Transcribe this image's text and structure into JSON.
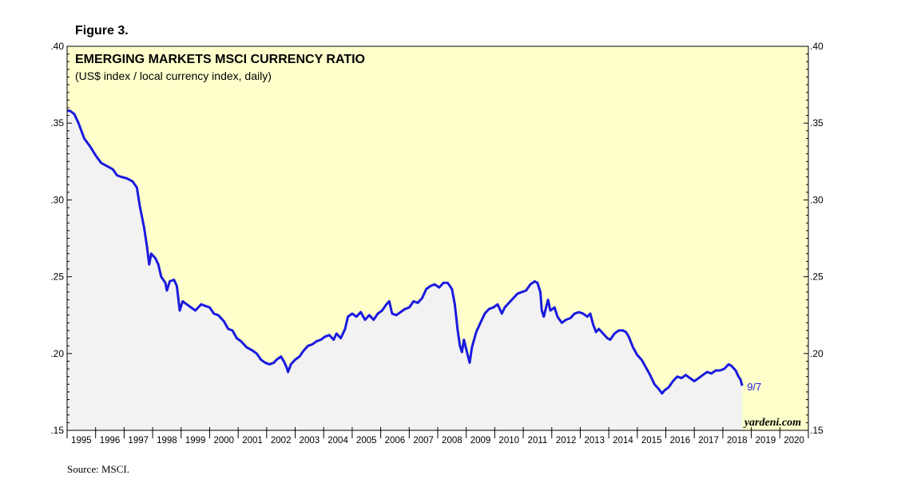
{
  "figure_label": "Figure 3.",
  "source_note": "Source: MSCI.",
  "watermark": "yardeni.com",
  "colors": {
    "plot_bg": "#ffffcc",
    "area_fill": "#f2f2f2",
    "line": "#1a1adf",
    "frame": "#000000"
  },
  "chart_data": {
    "type": "line",
    "title": "EMERGING MARKETS MSCI CURRENCY RATIO",
    "subtitle": "(US$ index / local currency index, daily)",
    "end_label": "9/7",
    "xlim": [
      1995,
      2021
    ],
    "ylim": [
      0.15,
      0.4
    ],
    "yticks": [
      ".15",
      ".20",
      ".25",
      ".30",
      ".35",
      ".40"
    ],
    "ytick_values": [
      0.15,
      0.2,
      0.25,
      0.3,
      0.35,
      0.4
    ],
    "xtick_labels": [
      "1995",
      "1996",
      "1997",
      "1998",
      "1999",
      "2000",
      "2001",
      "2002",
      "2003",
      "2004",
      "2005",
      "2006",
      "2007",
      "2008",
      "2009",
      "2010",
      "2011",
      "2012",
      "2013",
      "2014",
      "2015",
      "2016",
      "2017",
      "2018",
      "2019",
      "2020"
    ],
    "grid": false,
    "legend": "none",
    "series": [
      {
        "points": [
          [
            1995.0,
            0.358
          ],
          [
            1995.1,
            0.358
          ],
          [
            1995.25,
            0.356
          ],
          [
            1995.4,
            0.35
          ],
          [
            1995.6,
            0.34
          ],
          [
            1995.8,
            0.335
          ],
          [
            1996.0,
            0.329
          ],
          [
            1996.2,
            0.324
          ],
          [
            1996.4,
            0.322
          ],
          [
            1996.6,
            0.32
          ],
          [
            1996.75,
            0.316
          ],
          [
            1996.9,
            0.315
          ],
          [
            1997.1,
            0.314
          ],
          [
            1997.3,
            0.312
          ],
          [
            1997.45,
            0.308
          ],
          [
            1997.55,
            0.296
          ],
          [
            1997.7,
            0.282
          ],
          [
            1997.8,
            0.27
          ],
          [
            1997.88,
            0.258
          ],
          [
            1997.95,
            0.265
          ],
          [
            1998.1,
            0.262
          ],
          [
            1998.2,
            0.258
          ],
          [
            1998.3,
            0.25
          ],
          [
            1998.45,
            0.246
          ],
          [
            1998.5,
            0.241
          ],
          [
            1998.6,
            0.247
          ],
          [
            1998.75,
            0.248
          ],
          [
            1998.85,
            0.244
          ],
          [
            1998.95,
            0.228
          ],
          [
            1999.05,
            0.234
          ],
          [
            1999.2,
            0.232
          ],
          [
            1999.35,
            0.23
          ],
          [
            1999.5,
            0.228
          ],
          [
            1999.7,
            0.232
          ],
          [
            1999.85,
            0.231
          ],
          [
            2000.0,
            0.23
          ],
          [
            2000.15,
            0.226
          ],
          [
            2000.3,
            0.225
          ],
          [
            2000.5,
            0.221
          ],
          [
            2000.65,
            0.216
          ],
          [
            2000.8,
            0.215
          ],
          [
            2000.95,
            0.21
          ],
          [
            2001.1,
            0.208
          ],
          [
            2001.3,
            0.204
          ],
          [
            2001.5,
            0.202
          ],
          [
            2001.65,
            0.2
          ],
          [
            2001.8,
            0.196
          ],
          [
            2001.95,
            0.194
          ],
          [
            2002.1,
            0.193
          ],
          [
            2002.25,
            0.194
          ],
          [
            2002.35,
            0.196
          ],
          [
            2002.5,
            0.198
          ],
          [
            2002.6,
            0.195
          ],
          [
            2002.7,
            0.191
          ],
          [
            2002.75,
            0.188
          ],
          [
            2002.85,
            0.193
          ],
          [
            2003.0,
            0.196
          ],
          [
            2003.15,
            0.198
          ],
          [
            2003.3,
            0.202
          ],
          [
            2003.45,
            0.205
          ],
          [
            2003.6,
            0.206
          ],
          [
            2003.75,
            0.208
          ],
          [
            2003.9,
            0.209
          ],
          [
            2004.05,
            0.211
          ],
          [
            2004.2,
            0.212
          ],
          [
            2004.35,
            0.209
          ],
          [
            2004.45,
            0.213
          ],
          [
            2004.6,
            0.21
          ],
          [
            2004.75,
            0.216
          ],
          [
            2004.85,
            0.224
          ],
          [
            2005.0,
            0.226
          ],
          [
            2005.15,
            0.224
          ],
          [
            2005.3,
            0.227
          ],
          [
            2005.45,
            0.222
          ],
          [
            2005.6,
            0.225
          ],
          [
            2005.75,
            0.222
          ],
          [
            2005.9,
            0.226
          ],
          [
            2006.05,
            0.228
          ],
          [
            2006.2,
            0.232
          ],
          [
            2006.3,
            0.234
          ],
          [
            2006.4,
            0.226
          ],
          [
            2006.55,
            0.225
          ],
          [
            2006.7,
            0.227
          ],
          [
            2006.85,
            0.229
          ],
          [
            2007.0,
            0.23
          ],
          [
            2007.15,
            0.234
          ],
          [
            2007.3,
            0.233
          ],
          [
            2007.45,
            0.236
          ],
          [
            2007.6,
            0.242
          ],
          [
            2007.75,
            0.244
          ],
          [
            2007.9,
            0.245
          ],
          [
            2008.05,
            0.243
          ],
          [
            2008.2,
            0.246
          ],
          [
            2008.35,
            0.246
          ],
          [
            2008.5,
            0.242
          ],
          [
            2008.6,
            0.232
          ],
          [
            2008.7,
            0.215
          ],
          [
            2008.78,
            0.205
          ],
          [
            2008.85,
            0.201
          ],
          [
            2008.92,
            0.209
          ],
          [
            2009.05,
            0.199
          ],
          [
            2009.12,
            0.194
          ],
          [
            2009.2,
            0.204
          ],
          [
            2009.35,
            0.214
          ],
          [
            2009.5,
            0.22
          ],
          [
            2009.65,
            0.226
          ],
          [
            2009.8,
            0.229
          ],
          [
            2009.95,
            0.23
          ],
          [
            2010.1,
            0.232
          ],
          [
            2010.25,
            0.226
          ],
          [
            2010.35,
            0.23
          ],
          [
            2010.5,
            0.233
          ],
          [
            2010.65,
            0.236
          ],
          [
            2010.8,
            0.239
          ],
          [
            2010.95,
            0.24
          ],
          [
            2011.1,
            0.241
          ],
          [
            2011.25,
            0.245
          ],
          [
            2011.4,
            0.247
          ],
          [
            2011.5,
            0.246
          ],
          [
            2011.6,
            0.24
          ],
          [
            2011.65,
            0.228
          ],
          [
            2011.72,
            0.224
          ],
          [
            2011.8,
            0.23
          ],
          [
            2011.87,
            0.235
          ],
          [
            2011.95,
            0.228
          ],
          [
            2012.1,
            0.23
          ],
          [
            2012.2,
            0.224
          ],
          [
            2012.35,
            0.22
          ],
          [
            2012.5,
            0.222
          ],
          [
            2012.65,
            0.223
          ],
          [
            2012.8,
            0.226
          ],
          [
            2012.95,
            0.227
          ],
          [
            2013.1,
            0.226
          ],
          [
            2013.25,
            0.224
          ],
          [
            2013.35,
            0.226
          ],
          [
            2013.45,
            0.219
          ],
          [
            2013.55,
            0.214
          ],
          [
            2013.65,
            0.216
          ],
          [
            2013.8,
            0.213
          ],
          [
            2013.95,
            0.21
          ],
          [
            2014.05,
            0.209
          ],
          [
            2014.2,
            0.213
          ],
          [
            2014.35,
            0.215
          ],
          [
            2014.5,
            0.215
          ],
          [
            2014.6,
            0.214
          ],
          [
            2014.7,
            0.211
          ],
          [
            2014.85,
            0.204
          ],
          [
            2015.0,
            0.199
          ],
          [
            2015.15,
            0.196
          ],
          [
            2015.3,
            0.191
          ],
          [
            2015.45,
            0.186
          ],
          [
            2015.6,
            0.18
          ],
          [
            2015.75,
            0.177
          ],
          [
            2015.87,
            0.174
          ],
          [
            2015.95,
            0.176
          ],
          [
            2016.1,
            0.178
          ],
          [
            2016.25,
            0.182
          ],
          [
            2016.4,
            0.185
          ],
          [
            2016.55,
            0.184
          ],
          [
            2016.7,
            0.186
          ],
          [
            2016.85,
            0.184
          ],
          [
            2017.0,
            0.182
          ],
          [
            2017.15,
            0.184
          ],
          [
            2017.3,
            0.186
          ],
          [
            2017.45,
            0.188
          ],
          [
            2017.6,
            0.187
          ],
          [
            2017.75,
            0.189
          ],
          [
            2017.9,
            0.189
          ],
          [
            2018.05,
            0.19
          ],
          [
            2018.2,
            0.193
          ],
          [
            2018.3,
            0.192
          ],
          [
            2018.45,
            0.189
          ],
          [
            2018.55,
            0.185
          ],
          [
            2018.62,
            0.183
          ],
          [
            2018.68,
            0.179
          ]
        ]
      }
    ]
  }
}
